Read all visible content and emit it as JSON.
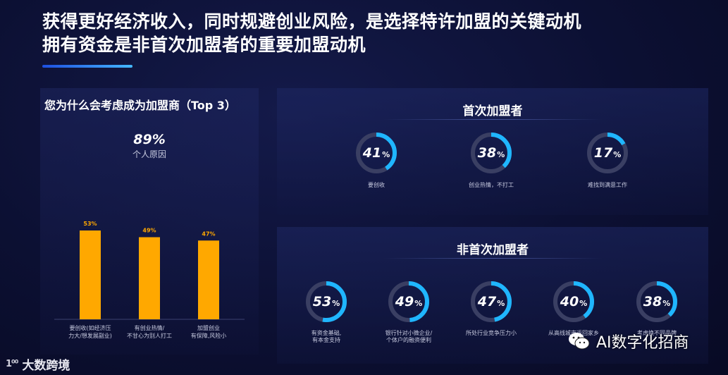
{
  "headline": {
    "line1": "获得更好经济收入，同时规避创业风险，是选择特许加盟的关键动机",
    "line2": "拥有资金是非首次加盟者的重要加盟动机"
  },
  "left": {
    "title": "您为什么会考虑成为加盟商（Top 3）",
    "big_pct": "89%",
    "big_sub": "个人原因"
  },
  "chart_data": [
    {
      "type": "bar",
      "title": "您为什么会考虑成为加盟商（Top 3）",
      "categories": [
        [
          "要创收(如经济压",
          "力大/想发展副业)"
        ],
        [
          "有创业热情/",
          "不甘心为别人打工"
        ],
        [
          "加盟创业",
          "有保障,风险小"
        ]
      ],
      "values": [
        53,
        49,
        47
      ],
      "value_labels": [
        "53%",
        "49%",
        "47%"
      ],
      "ylim": [
        0,
        60
      ],
      "color": "#ffa800"
    },
    {
      "type": "pie",
      "title": "首次加盟者",
      "items": [
        {
          "label": "要创收",
          "value": 41
        },
        {
          "label": "创业热情，不打工",
          "value": 38
        },
        {
          "label": "难找到满意工作",
          "value": 17
        }
      ]
    },
    {
      "type": "pie",
      "title": "非首次加盟者",
      "items": [
        {
          "label": [
            "有资金基础,",
            "有本金支持"
          ],
          "value": 53
        },
        {
          "label": [
            "银行针对小微企业/",
            "个体户的融资便利"
          ],
          "value": 49
        },
        {
          "label": [
            "所处行业竞争压力小"
          ],
          "value": 47
        },
        {
          "label": [
            "从高线城市返回家乡"
          ],
          "value": 40
        },
        {
          "label": [
            "考虑换不同品牌"
          ],
          "value": 38
        }
      ]
    }
  ],
  "first_time": {
    "title": "首次加盟者"
  },
  "non_first_time": {
    "title": "非首次加盟者"
  },
  "colors": {
    "bar": "#ffa800",
    "ring": "#1fb6ff",
    "ring_track": "#3a3f63"
  },
  "unit": "%",
  "footer": {
    "logo_mark": "1⁰⁰",
    "logo_text": "大数跨境"
  },
  "wechat": {
    "name": "AI数字化招商",
    "icon": "wechat-icon"
  }
}
